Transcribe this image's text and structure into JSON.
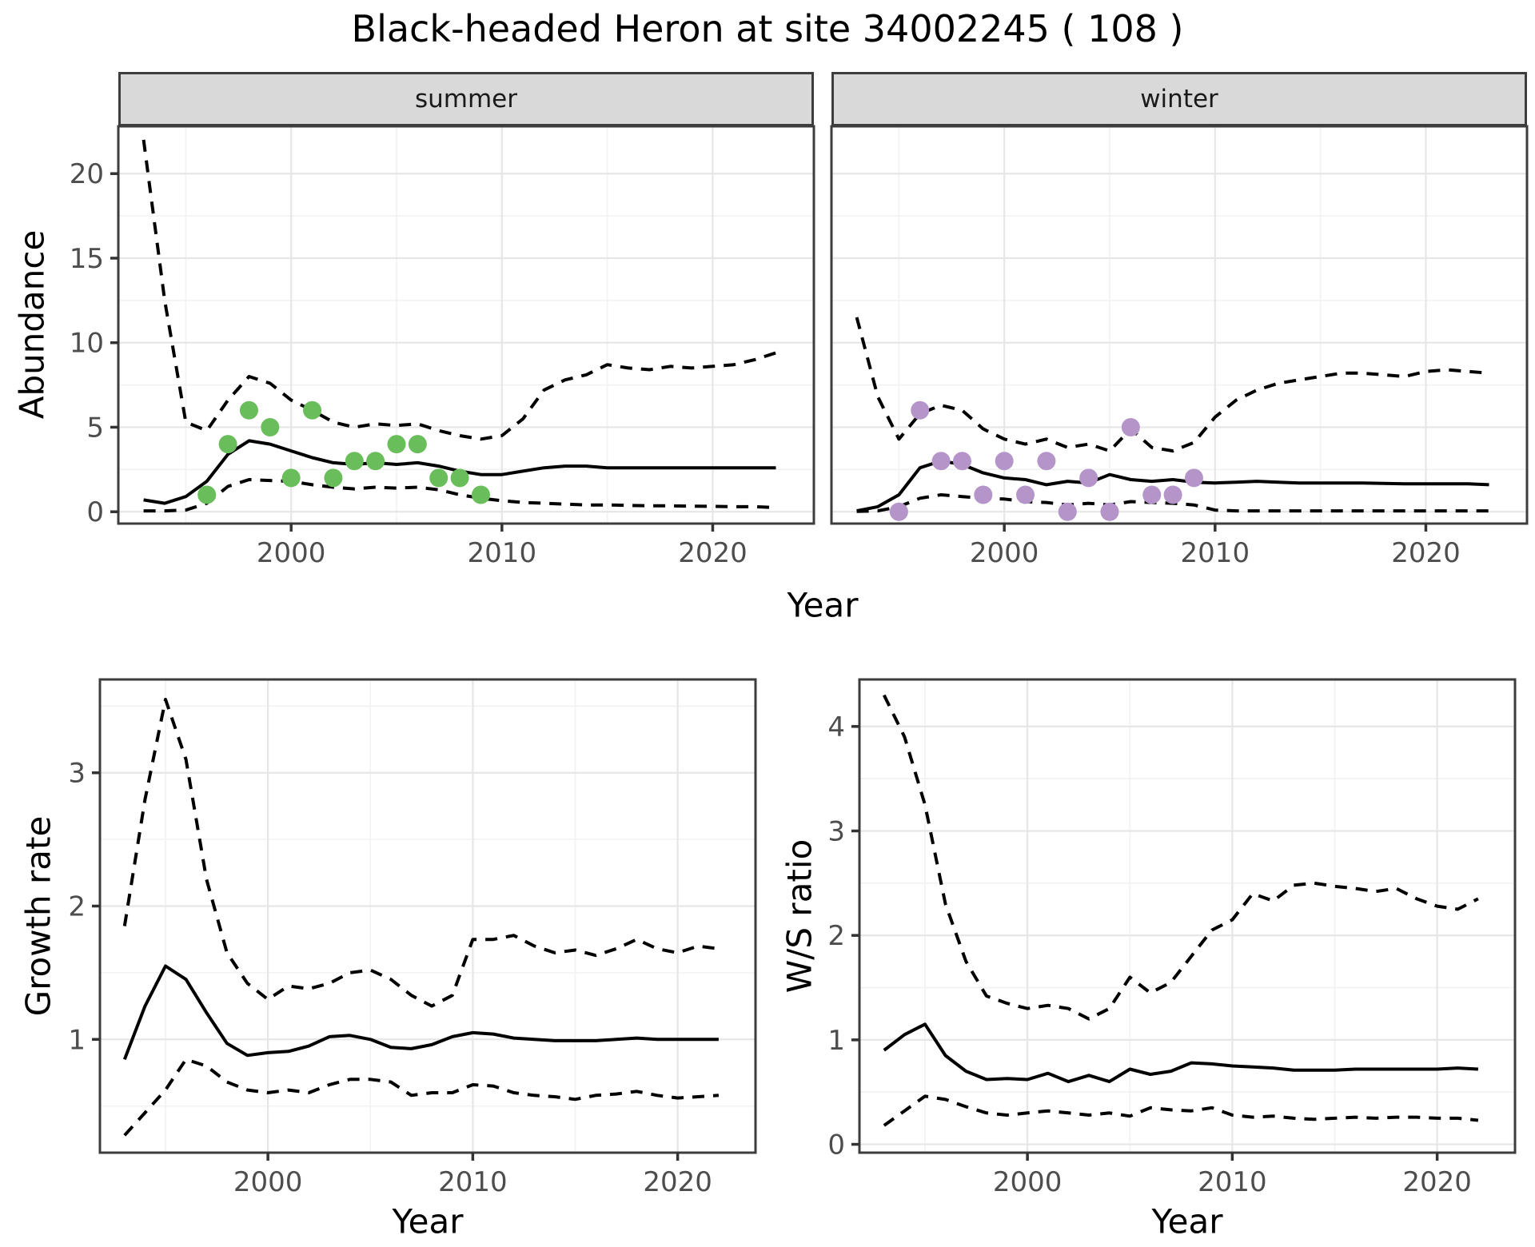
{
  "title": "Black-headed Heron at site 34002245 ( 108 )",
  "colors": {
    "summer_point": "#69bd5b",
    "winter_point": "#b494c9",
    "line": "#000000",
    "strip_bg": "#d9d9d9",
    "strip_text": "#1a1a1a",
    "panel_border": "#3d3d3d",
    "grid_major": "#e6e6e6",
    "grid_minor": "#f2f2f2",
    "tick_label": "#4d4d4d",
    "background": "#ffffff"
  },
  "chart_data": [
    {
      "type": "line",
      "facet": "summer",
      "xlabel": "Year",
      "ylabel": "Abundance",
      "xlim": [
        1991.8,
        2024.8
      ],
      "ylim": [
        -0.7,
        22.8
      ],
      "xticks": [
        2000,
        2010,
        2020
      ],
      "xminor": [
        1995,
        2005,
        2015
      ],
      "yticks": [
        0,
        5,
        10,
        15,
        20
      ],
      "yminor": [
        2.5,
        7.5,
        12.5,
        17.5
      ],
      "grid": true,
      "legend": "none",
      "x": [
        1993,
        1994,
        1995,
        1996,
        1997,
        1998,
        1999,
        2000,
        2001,
        2002,
        2003,
        2004,
        2005,
        2006,
        2007,
        2008,
        2009,
        2010,
        2011,
        2012,
        2013,
        2014,
        2015,
        2016,
        2017,
        2018,
        2019,
        2020,
        2021,
        2022,
        2023
      ],
      "series": [
        {
          "name": "upper_credible_interval",
          "style": "dashed",
          "values": [
            22,
            12.5,
            5.3,
            4.8,
            6.6,
            8.0,
            7.6,
            6.6,
            6.0,
            5.3,
            5.0,
            5.2,
            5.1,
            5.2,
            4.8,
            4.5,
            4.3,
            4.5,
            5.5,
            7.2,
            7.8,
            8.1,
            8.7,
            8.5,
            8.4,
            8.6,
            8.5,
            8.6,
            8.7,
            9.0,
            9.4
          ]
        },
        {
          "name": "median_estimate",
          "style": "solid",
          "values": [
            0.7,
            0.5,
            0.9,
            1.8,
            3.4,
            4.2,
            4.0,
            3.6,
            3.2,
            2.9,
            2.8,
            2.9,
            2.8,
            2.9,
            2.7,
            2.4,
            2.2,
            2.2,
            2.4,
            2.6,
            2.7,
            2.7,
            2.6,
            2.6,
            2.6,
            2.6,
            2.6,
            2.6,
            2.6,
            2.6,
            2.6
          ]
        },
        {
          "name": "lower_credible_interval",
          "style": "dashed",
          "values": [
            0.05,
            0.05,
            0.1,
            0.5,
            1.5,
            1.9,
            1.85,
            1.8,
            1.6,
            1.45,
            1.35,
            1.45,
            1.4,
            1.45,
            1.3,
            1.0,
            0.8,
            0.65,
            0.55,
            0.5,
            0.45,
            0.4,
            0.4,
            0.38,
            0.35,
            0.35,
            0.33,
            0.32,
            0.3,
            0.3,
            0.25
          ]
        }
      ],
      "points": {
        "name": "observed-counts-summer",
        "color_key": "summer_point",
        "x": [
          1996,
          1997,
          1998,
          1999,
          2000,
          2001,
          2002,
          2003,
          2004,
          2005,
          2006,
          2007,
          2008,
          2009
        ],
        "y": [
          1,
          4,
          6,
          5,
          2,
          6,
          2,
          3,
          3,
          4,
          4,
          2,
          2,
          1
        ]
      }
    },
    {
      "type": "line",
      "facet": "winter",
      "xlabel": "Year",
      "ylabel": "Abundance",
      "xlim": [
        1991.8,
        2024.8
      ],
      "ylim": [
        -0.7,
        22.8
      ],
      "xticks": [
        2000,
        2010,
        2020
      ],
      "xminor": [
        1995,
        2005,
        2015
      ],
      "yticks": [
        0,
        5,
        10,
        15,
        20
      ],
      "yminor": [
        2.5,
        7.5,
        12.5,
        17.5
      ],
      "grid": true,
      "legend": "none",
      "x": [
        1993,
        1994,
        1995,
        1996,
        1997,
        1998,
        1999,
        2000,
        2001,
        2002,
        2003,
        2004,
        2005,
        2006,
        2007,
        2008,
        2009,
        2010,
        2011,
        2012,
        2013,
        2014,
        2015,
        2016,
        2017,
        2018,
        2019,
        2020,
        2021,
        2022,
        2023
      ],
      "series": [
        {
          "name": "upper_credible_interval",
          "style": "dashed",
          "values": [
            11.5,
            6.8,
            4.3,
            5.8,
            6.3,
            6.0,
            4.9,
            4.3,
            4.0,
            4.3,
            3.8,
            4.0,
            3.6,
            4.9,
            3.8,
            3.6,
            4.1,
            5.6,
            6.6,
            7.2,
            7.6,
            7.8,
            8.0,
            8.2,
            8.2,
            8.1,
            8.0,
            8.3,
            8.4,
            8.3,
            8.2
          ]
        },
        {
          "name": "median_estimate",
          "style": "solid",
          "values": [
            0.05,
            0.3,
            1.0,
            2.6,
            3.0,
            2.8,
            2.3,
            2.0,
            1.9,
            1.6,
            1.8,
            1.7,
            2.2,
            1.9,
            1.8,
            1.9,
            1.75,
            1.7,
            1.75,
            1.8,
            1.75,
            1.7,
            1.7,
            1.7,
            1.7,
            1.68,
            1.65,
            1.65,
            1.65,
            1.65,
            1.6
          ]
        },
        {
          "name": "lower_credible_interval",
          "style": "dashed",
          "values": [
            0.02,
            0.05,
            0.3,
            0.8,
            1.0,
            0.9,
            0.8,
            0.75,
            0.6,
            0.55,
            0.4,
            0.5,
            0.4,
            0.6,
            0.55,
            0.5,
            0.4,
            0.1,
            0.05,
            0.05,
            0.05,
            0.05,
            0.05,
            0.05,
            0.05,
            0.05,
            0.05,
            0.05,
            0.05,
            0.05,
            0.05
          ]
        }
      ],
      "points": {
        "name": "observed-counts-winter",
        "color_key": "winter_point",
        "x": [
          1995,
          1996,
          1997,
          1998,
          1999,
          2000,
          2001,
          2002,
          2003,
          2004,
          2005,
          2006,
          2007,
          2008,
          2009
        ],
        "y": [
          0,
          6,
          3,
          3,
          1,
          3,
          1,
          3,
          0,
          2,
          0,
          5,
          1,
          1,
          2
        ]
      }
    },
    {
      "type": "line",
      "facet": "",
      "xlabel": "Year",
      "ylabel": "Growth rate",
      "xlim": [
        1991.8,
        2023.8
      ],
      "ylim": [
        0.15,
        3.7
      ],
      "xticks": [
        2000,
        2010,
        2020
      ],
      "xminor": [
        1995,
        2005,
        2015
      ],
      "yticks": [
        1,
        2,
        3
      ],
      "yminor": [
        0.5,
        1.5,
        2.5,
        3.5
      ],
      "grid": true,
      "legend": "none",
      "x": [
        1993,
        1994,
        1995,
        1996,
        1997,
        1998,
        1999,
        2000,
        2001,
        2002,
        2003,
        2004,
        2005,
        2006,
        2007,
        2008,
        2009,
        2010,
        2011,
        2012,
        2013,
        2014,
        2015,
        2016,
        2017,
        2018,
        2019,
        2020,
        2021,
        2022
      ],
      "series": [
        {
          "name": "upper_credible_interval",
          "style": "dashed",
          "values": [
            1.85,
            2.8,
            3.55,
            3.1,
            2.2,
            1.65,
            1.42,
            1.3,
            1.4,
            1.38,
            1.42,
            1.5,
            1.52,
            1.45,
            1.33,
            1.25,
            1.33,
            1.75,
            1.75,
            1.78,
            1.7,
            1.65,
            1.67,
            1.63,
            1.68,
            1.75,
            1.68,
            1.65,
            1.7,
            1.68
          ]
        },
        {
          "name": "median_estimate",
          "style": "solid",
          "values": [
            0.85,
            1.25,
            1.55,
            1.45,
            1.2,
            0.97,
            0.88,
            0.9,
            0.91,
            0.95,
            1.02,
            1.03,
            1.0,
            0.94,
            0.93,
            0.96,
            1.02,
            1.05,
            1.04,
            1.01,
            1.0,
            0.99,
            0.99,
            0.99,
            1.0,
            1.01,
            1.0,
            1.0,
            1.0,
            1.0
          ]
        },
        {
          "name": "lower_credible_interval",
          "style": "dashed",
          "values": [
            0.28,
            0.45,
            0.62,
            0.85,
            0.8,
            0.68,
            0.62,
            0.6,
            0.62,
            0.6,
            0.66,
            0.7,
            0.7,
            0.68,
            0.58,
            0.6,
            0.6,
            0.66,
            0.65,
            0.6,
            0.58,
            0.57,
            0.55,
            0.58,
            0.59,
            0.61,
            0.58,
            0.56,
            0.57,
            0.58
          ]
        }
      ]
    },
    {
      "type": "line",
      "facet": "",
      "xlabel": "Year",
      "ylabel": "W/S ratio",
      "xlim": [
        1991.8,
        2023.8
      ],
      "ylim": [
        -0.08,
        4.45
      ],
      "xticks": [
        2000,
        2010,
        2020
      ],
      "xminor": [
        1995,
        2005,
        2015
      ],
      "yticks": [
        0,
        1,
        2,
        3,
        4
      ],
      "yminor": [
        0.5,
        1.5,
        2.5,
        3.5
      ],
      "grid": true,
      "legend": "none",
      "x": [
        1993,
        1994,
        1995,
        1996,
        1997,
        1998,
        1999,
        2000,
        2001,
        2002,
        2003,
        2004,
        2005,
        2006,
        2007,
        2008,
        2009,
        2010,
        2011,
        2012,
        2013,
        2014,
        2015,
        2016,
        2017,
        2018,
        2019,
        2020,
        2021,
        2022
      ],
      "series": [
        {
          "name": "upper_credible_interval",
          "style": "dashed",
          "values": [
            4.3,
            3.9,
            3.25,
            2.3,
            1.75,
            1.42,
            1.35,
            1.3,
            1.33,
            1.3,
            1.2,
            1.3,
            1.6,
            1.45,
            1.55,
            1.8,
            2.05,
            2.15,
            2.4,
            2.33,
            2.48,
            2.5,
            2.47,
            2.45,
            2.42,
            2.45,
            2.35,
            2.28,
            2.25,
            2.35
          ]
        },
        {
          "name": "median_estimate",
          "style": "solid",
          "values": [
            0.9,
            1.05,
            1.15,
            0.85,
            0.7,
            0.62,
            0.63,
            0.62,
            0.68,
            0.6,
            0.66,
            0.6,
            0.72,
            0.67,
            0.7,
            0.78,
            0.77,
            0.75,
            0.74,
            0.73,
            0.71,
            0.71,
            0.71,
            0.72,
            0.72,
            0.72,
            0.72,
            0.72,
            0.73,
            0.72
          ]
        },
        {
          "name": "lower_credible_interval",
          "style": "dashed",
          "values": [
            0.18,
            0.32,
            0.46,
            0.43,
            0.36,
            0.3,
            0.28,
            0.3,
            0.32,
            0.3,
            0.28,
            0.3,
            0.27,
            0.35,
            0.33,
            0.32,
            0.35,
            0.28,
            0.26,
            0.27,
            0.25,
            0.24,
            0.25,
            0.26,
            0.25,
            0.26,
            0.26,
            0.25,
            0.25,
            0.23
          ]
        }
      ]
    }
  ]
}
